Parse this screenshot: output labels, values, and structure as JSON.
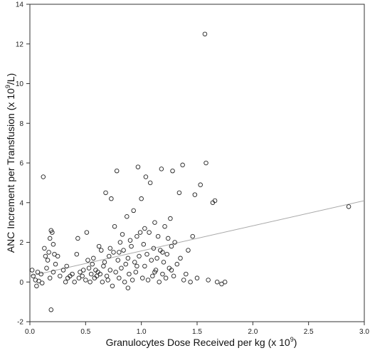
{
  "chart_data": {
    "type": "scatter",
    "title": "",
    "xlabel": {
      "main": "Granulocytes Dose Received per kg  (x 10",
      "sup": "9",
      "tail": ")"
    },
    "ylabel": {
      "main": "ANC Increment per Transfusion  (x 10",
      "sup": "9",
      "tail": "/L)"
    },
    "xlim": [
      0.0,
      3.0
    ],
    "ylim": [
      -2,
      14
    ],
    "xticks": [
      0.0,
      0.5,
      1.0,
      1.5,
      2.0,
      2.5,
      3.0
    ],
    "xtick_labels": [
      "0.0",
      "0.5",
      "1.0",
      "1.5",
      "2.0",
      "2.5",
      "3.0"
    ],
    "yticks": [
      -2,
      0,
      2,
      4,
      6,
      8,
      10,
      12,
      14
    ],
    "ytick_labels": [
      "-2",
      "0",
      "2",
      "4",
      "6",
      "8",
      "10",
      "12",
      "14"
    ],
    "grid": false,
    "legend": "none",
    "marker": "open-circle",
    "trend_line": {
      "x": [
        0.0,
        3.0
      ],
      "y": [
        0.3,
        4.1
      ]
    },
    "points": [
      [
        0.02,
        0.6
      ],
      [
        0.03,
        0.3
      ],
      [
        0.05,
        0.1
      ],
      [
        0.06,
        -0.2
      ],
      [
        0.07,
        0.5
      ],
      [
        0.08,
        0.05
      ],
      [
        0.1,
        0.4
      ],
      [
        0.11,
        -0.05
      ],
      [
        0.12,
        5.3
      ],
      [
        0.13,
        1.7
      ],
      [
        0.14,
        1.3
      ],
      [
        0.15,
        0.7
      ],
      [
        0.16,
        1.1
      ],
      [
        0.17,
        1.5
      ],
      [
        0.18,
        2.2
      ],
      [
        0.19,
        2.6
      ],
      [
        0.2,
        2.5
      ],
      [
        0.21,
        1.9
      ],
      [
        0.22,
        1.4
      ],
      [
        0.23,
        0.9
      ],
      [
        0.19,
        -1.4
      ],
      [
        0.18,
        0.2
      ],
      [
        0.21,
        0.5
      ],
      [
        0.25,
        1.3
      ],
      [
        0.27,
        0.3
      ],
      [
        0.3,
        0.6
      ],
      [
        0.32,
        0.0
      ],
      [
        0.34,
        0.2
      ],
      [
        0.36,
        0.3
      ],
      [
        0.38,
        0.4
      ],
      [
        0.4,
        0.0
      ],
      [
        0.42,
        1.4
      ],
      [
        0.43,
        2.2
      ],
      [
        0.45,
        0.5
      ],
      [
        0.47,
        0.3
      ],
      [
        0.48,
        0.6
      ],
      [
        0.5,
        0.1
      ],
      [
        0.51,
        2.5
      ],
      [
        0.52,
        1.1
      ],
      [
        0.53,
        0.7
      ],
      [
        0.55,
        0.4
      ],
      [
        0.56,
        0.9
      ],
      [
        0.57,
        1.2
      ],
      [
        0.58,
        0.2
      ],
      [
        0.6,
        0.3
      ],
      [
        0.61,
        0.5
      ],
      [
        0.62,
        1.8
      ],
      [
        0.63,
        0.4
      ],
      [
        0.64,
        1.6
      ],
      [
        0.65,
        0.0
      ],
      [
        0.66,
        0.8
      ],
      [
        0.67,
        1.0
      ],
      [
        0.68,
        4.5
      ],
      [
        0.69,
        0.3
      ],
      [
        0.7,
        0.1
      ],
      [
        0.71,
        1.3
      ],
      [
        0.72,
        0.6
      ],
      [
        0.73,
        4.2
      ],
      [
        0.74,
        -0.2
      ],
      [
        0.75,
        1.5
      ],
      [
        0.76,
        2.8
      ],
      [
        0.77,
        0.5
      ],
      [
        0.78,
        5.6
      ],
      [
        0.79,
        1.1
      ],
      [
        0.8,
        0.2
      ],
      [
        0.81,
        2.0
      ],
      [
        0.82,
        0.7
      ],
      [
        0.83,
        2.4
      ],
      [
        0.84,
        1.6
      ],
      [
        0.85,
        0.0
      ],
      [
        0.86,
        0.9
      ],
      [
        0.87,
        3.3
      ],
      [
        0.88,
        1.2
      ],
      [
        0.89,
        0.4
      ],
      [
        0.9,
        2.1
      ],
      [
        0.91,
        1.8
      ],
      [
        0.92,
        0.1
      ],
      [
        0.93,
        3.6
      ],
      [
        0.94,
        1.0
      ],
      [
        0.95,
        0.5
      ],
      [
        0.96,
        2.3
      ],
      [
        0.97,
        5.8
      ],
      [
        0.98,
        1.3
      ],
      [
        0.99,
        2.5
      ],
      [
        1.0,
        4.2
      ],
      [
        1.01,
        0.2
      ],
      [
        1.02,
        1.9
      ],
      [
        1.03,
        0.8
      ],
      [
        1.04,
        5.3
      ],
      [
        1.05,
        1.4
      ],
      [
        1.06,
        0.1
      ],
      [
        1.07,
        2.5
      ],
      [
        1.08,
        5.0
      ],
      [
        1.09,
        1.1
      ],
      [
        1.1,
        0.3
      ],
      [
        1.11,
        1.7
      ],
      [
        1.12,
        3.0
      ],
      [
        1.13,
        0.6
      ],
      [
        1.14,
        1.2
      ],
      [
        1.15,
        2.3
      ],
      [
        1.16,
        0.0
      ],
      [
        1.17,
        1.6
      ],
      [
        1.18,
        5.7
      ],
      [
        1.19,
        0.4
      ],
      [
        1.2,
        1.0
      ],
      [
        1.21,
        2.8
      ],
      [
        1.22,
        0.2
      ],
      [
        1.23,
        1.4
      ],
      [
        1.24,
        2.2
      ],
      [
        1.25,
        0.7
      ],
      [
        1.26,
        3.2
      ],
      [
        1.27,
        1.8
      ],
      [
        1.28,
        5.6
      ],
      [
        1.29,
        0.3
      ],
      [
        1.3,
        2.0
      ],
      [
        1.32,
        0.9
      ],
      [
        1.34,
        4.5
      ],
      [
        1.35,
        1.2
      ],
      [
        1.37,
        5.9
      ],
      [
        1.38,
        0.1
      ],
      [
        1.4,
        0.4
      ],
      [
        1.42,
        1.6
      ],
      [
        1.44,
        0.0
      ],
      [
        1.46,
        2.3
      ],
      [
        1.48,
        4.4
      ],
      [
        1.5,
        0.2
      ],
      [
        1.53,
        4.9
      ],
      [
        1.57,
        12.5
      ],
      [
        1.58,
        6.0
      ],
      [
        1.6,
        0.1
      ],
      [
        1.64,
        4.0
      ],
      [
        1.66,
        4.1
      ],
      [
        1.68,
        0.0
      ],
      [
        1.72,
        -0.1
      ],
      [
        1.75,
        0.0
      ],
      [
        2.86,
        3.8
      ],
      [
        0.33,
        0.8
      ],
      [
        0.44,
        0.2
      ],
      [
        0.54,
        0.0
      ],
      [
        0.59,
        0.6
      ],
      [
        0.88,
        -0.3
      ],
      [
        0.96,
        0.8
      ],
      [
        1.03,
        2.7
      ],
      [
        1.12,
        0.5
      ],
      [
        1.19,
        1.5
      ],
      [
        1.27,
        0.6
      ],
      [
        0.72,
        1.7
      ],
      [
        0.8,
        1.5
      ]
    ]
  }
}
